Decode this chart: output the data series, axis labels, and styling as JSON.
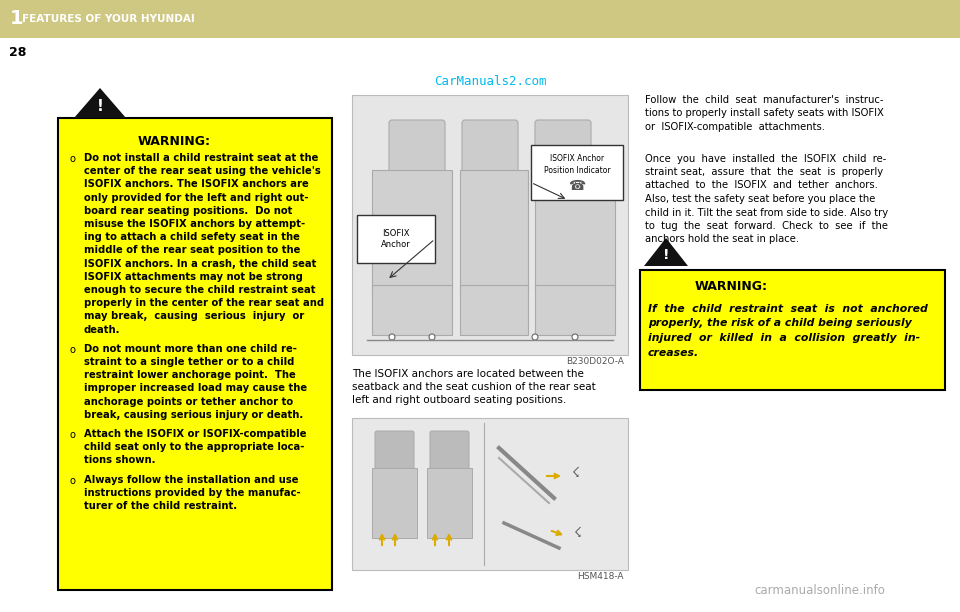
{
  "page_bg": "#ffffff",
  "header_bg": "#cfc882",
  "header_text": "FEATURES OF YOUR HYUNDAI",
  "header_number": "1",
  "page_number": "28",
  "warning_bg": "#ffff00",
  "warning_border": "#000000",
  "warning_title": "WARNING:",
  "warning_left_line1": "Do not install a child restraint seat at the",
  "warning_left_line2": "center of the rear seat using the vehicle's",
  "warning_left_line3": "ISOFIX anchors. The ISOFIX anchors are",
  "warning_left_line4": "only provided for the left and right out-",
  "warning_left_line5": "board rear seating positions.  Do not",
  "warning_left_line6": "misuse the ISOFIX anchors by attempt-",
  "warning_left_line7": "ing to attach a child sefety seat in the",
  "warning_left_line8": "middle of the rear seat position to the",
  "warning_left_line9": "ISOFIX anchors. In a crash, the child seat",
  "warning_left_line10": "ISOFIX attachments may not be strong",
  "warning_left_line11": "enough to secure the child restraint seat",
  "warning_left_line12": "properly in the center of the rear seat and",
  "warning_left_line13": "may break,  causing  serious  injury  or",
  "warning_left_line14": "death.",
  "warning_left_b2_1": "Do not mount more than one child re-",
  "warning_left_b2_2": "straint to a single tether or to a child",
  "warning_left_b2_3": "restraint lower anchorage point.  The",
  "warning_left_b2_4": "improper increased load may cause the",
  "warning_left_b2_5": "anchorage points or tether anchor to",
  "warning_left_b2_6": "break, causing serious injury or death.",
  "warning_left_b3_1": "Attach the ISOFIX or ISOFIX-compatible",
  "warning_left_b3_2": "child seat only to the appropriate loca-",
  "warning_left_b3_3": "tions shown.",
  "warning_left_b4_1": "Always follow the installation and use",
  "warning_left_b4_2": "instructions provided by the manufac-",
  "warning_left_b4_3": "turer of the child restraint.",
  "carmanuals_text": "CarManuals2.com",
  "image1_label": "B230D02O-A",
  "image1_caption_1": "The ISOFIX anchors are located between the",
  "image1_caption_2": "seatback and the seat cushion of the rear seat",
  "image1_caption_3": "left and right outboard seating positions.",
  "image2_label": "HSM418-A",
  "isofix_anchor_label": "ISOFIX\nAnchor",
  "isofix_position_label": "ISOFIX Anchor\nPosition Indicator",
  "right_para1_1": "Follow  the  child  seat  manufacturer's  instruc-",
  "right_para1_2": "tions to properly install safety seats with ISOFIX",
  "right_para1_3": "or  ISOFIX-compatible  attachments.",
  "right_para2_1": "Once  you  have  installed  the  ISOFIX  child  re-",
  "right_para2_2": "straint seat,  assure  that  the  seat  is  properly",
  "right_para2_3": "attached  to  the  ISOFIX  and  tether  anchors.",
  "right_para2_4": "Also, test the safety seat before you place the",
  "right_para2_5": "child in it. Tilt the seat from side to side. Also try",
  "right_para2_6": "to  tug  the  seat  forward.  Check  to  see  if  the",
  "right_para2_7": "anchors hold the seat in place.",
  "warning_right_title": "WARNING:",
  "warning_right_1": "If  the  child  restraint  seat  is  not  anchored",
  "warning_right_2": "properly, the risk of a child being seriously",
  "warning_right_3": "injured  or  killed  in  a  collision  greatly  in-",
  "warning_right_4": "creases.",
  "watermark_text": "carmanualsonline.info"
}
